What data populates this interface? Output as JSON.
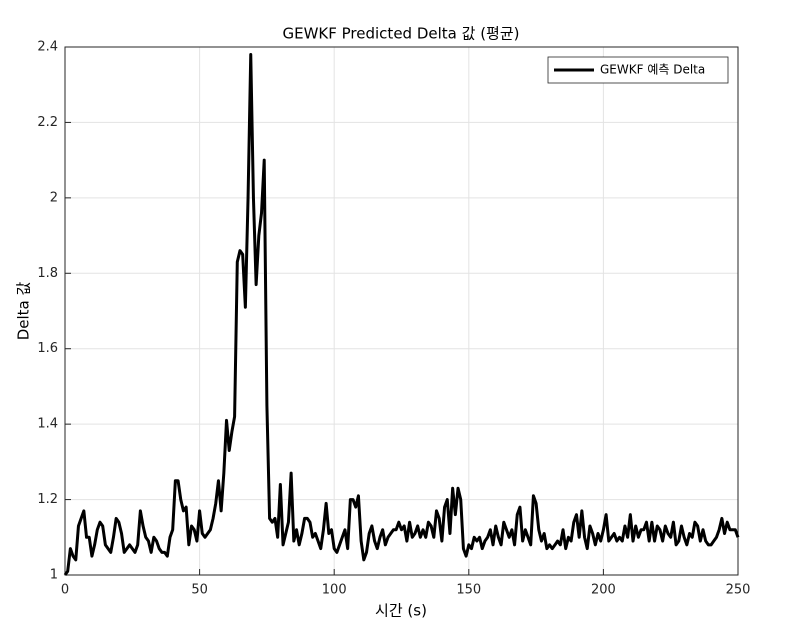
{
  "chart_data": {
    "type": "line",
    "title": "GEWKF Predicted Delta 값 (평균)",
    "x_label": "시간 (s)",
    "y_label": "Delta 값",
    "x": [
      0,
      1,
      2,
      3,
      4,
      5,
      6,
      7,
      8,
      9,
      10,
      11,
      12,
      13,
      14,
      15,
      16,
      17,
      18,
      19,
      20,
      21,
      22,
      23,
      24,
      25,
      26,
      27,
      28,
      29,
      30,
      31,
      32,
      33,
      34,
      35,
      36,
      37,
      38,
      39,
      40,
      41,
      42,
      43,
      44,
      45,
      46,
      47,
      48,
      49,
      50,
      51,
      52,
      53,
      54,
      55,
      56,
      57,
      58,
      59,
      60,
      61,
      62,
      63,
      64,
      65,
      66,
      67,
      68,
      69,
      70,
      71,
      72,
      73,
      74,
      75,
      76,
      77,
      78,
      79,
      80,
      81,
      82,
      83,
      84,
      85,
      86,
      87,
      88,
      89,
      90,
      91,
      92,
      93,
      94,
      95,
      96,
      97,
      98,
      99,
      100,
      101,
      102,
      103,
      104,
      105,
      106,
      107,
      108,
      109,
      110,
      111,
      112,
      113,
      114,
      115,
      116,
      117,
      118,
      119,
      120,
      121,
      122,
      123,
      124,
      125,
      126,
      127,
      128,
      129,
      130,
      131,
      132,
      133,
      134,
      135,
      136,
      137,
      138,
      139,
      140,
      141,
      142,
      143,
      144,
      145,
      146,
      147,
      148,
      149,
      150,
      151,
      152,
      153,
      154,
      155,
      156,
      157,
      158,
      159,
      160,
      161,
      162,
      163,
      164,
      165,
      166,
      167,
      168,
      169,
      170,
      171,
      172,
      173,
      174,
      175,
      176,
      177,
      178,
      179,
      180,
      181,
      182,
      183,
      184,
      185,
      186,
      187,
      188,
      189,
      190,
      191,
      192,
      193,
      194,
      195,
      196,
      197,
      198,
      199,
      200,
      201,
      202,
      203,
      204,
      205,
      206,
      207,
      208,
      209,
      210,
      211,
      212,
      213,
      214,
      215,
      216,
      217,
      218,
      219,
      220,
      221,
      222,
      223,
      224,
      225,
      226,
      227,
      228,
      229,
      230,
      231,
      232,
      233,
      234,
      235,
      236,
      237,
      238,
      239,
      240,
      241,
      242,
      243,
      244,
      245,
      246,
      247,
      248,
      249,
      250
    ],
    "series": [
      {
        "name": "GEWKF 예측 Delta",
        "color": "#000000",
        "values": [
          1.0,
          1.01,
          1.07,
          1.05,
          1.04,
          1.13,
          1.15,
          1.17,
          1.1,
          1.1,
          1.05,
          1.08,
          1.12,
          1.14,
          1.13,
          1.08,
          1.07,
          1.06,
          1.1,
          1.15,
          1.14,
          1.11,
          1.06,
          1.07,
          1.08,
          1.07,
          1.06,
          1.08,
          1.17,
          1.13,
          1.1,
          1.09,
          1.06,
          1.1,
          1.09,
          1.07,
          1.06,
          1.06,
          1.05,
          1.1,
          1.12,
          1.25,
          1.25,
          1.2,
          1.17,
          1.18,
          1.08,
          1.13,
          1.12,
          1.09,
          1.17,
          1.11,
          1.1,
          1.11,
          1.12,
          1.15,
          1.19,
          1.25,
          1.17,
          1.27,
          1.41,
          1.33,
          1.38,
          1.42,
          1.83,
          1.86,
          1.85,
          1.71,
          2.0,
          2.38,
          2.0,
          1.77,
          1.9,
          1.96,
          2.1,
          1.45,
          1.15,
          1.14,
          1.15,
          1.1,
          1.24,
          1.08,
          1.11,
          1.14,
          1.27,
          1.09,
          1.12,
          1.08,
          1.11,
          1.15,
          1.15,
          1.14,
          1.1,
          1.11,
          1.09,
          1.07,
          1.12,
          1.19,
          1.11,
          1.12,
          1.07,
          1.06,
          1.08,
          1.1,
          1.12,
          1.07,
          1.2,
          1.2,
          1.18,
          1.21,
          1.09,
          1.04,
          1.06,
          1.11,
          1.13,
          1.09,
          1.07,
          1.1,
          1.12,
          1.08,
          1.1,
          1.11,
          1.12,
          1.12,
          1.14,
          1.12,
          1.13,
          1.09,
          1.14,
          1.1,
          1.11,
          1.13,
          1.1,
          1.12,
          1.1,
          1.14,
          1.13,
          1.1,
          1.17,
          1.15,
          1.09,
          1.18,
          1.2,
          1.11,
          1.23,
          1.16,
          1.23,
          1.2,
          1.07,
          1.05,
          1.08,
          1.07,
          1.1,
          1.09,
          1.1,
          1.07,
          1.09,
          1.1,
          1.12,
          1.08,
          1.13,
          1.1,
          1.08,
          1.14,
          1.12,
          1.1,
          1.12,
          1.08,
          1.16,
          1.18,
          1.09,
          1.12,
          1.1,
          1.08,
          1.21,
          1.19,
          1.12,
          1.09,
          1.11,
          1.07,
          1.08,
          1.07,
          1.08,
          1.09,
          1.08,
          1.12,
          1.07,
          1.1,
          1.09,
          1.14,
          1.16,
          1.1,
          1.17,
          1.1,
          1.07,
          1.13,
          1.11,
          1.08,
          1.11,
          1.09,
          1.12,
          1.16,
          1.09,
          1.1,
          1.11,
          1.09,
          1.1,
          1.09,
          1.13,
          1.1,
          1.16,
          1.09,
          1.13,
          1.1,
          1.12,
          1.12,
          1.14,
          1.09,
          1.14,
          1.09,
          1.13,
          1.12,
          1.09,
          1.13,
          1.11,
          1.1,
          1.14,
          1.08,
          1.09,
          1.13,
          1.1,
          1.08,
          1.11,
          1.1,
          1.14,
          1.13,
          1.09,
          1.12,
          1.09,
          1.08,
          1.08,
          1.09,
          1.1,
          1.12,
          1.15,
          1.11,
          1.14,
          1.12,
          1.12,
          1.12,
          1.1
        ]
      }
    ],
    "xlim": [
      0,
      250
    ],
    "xticks": [
      0,
      50,
      100,
      150,
      200,
      250
    ],
    "ylim": [
      1,
      2.4
    ],
    "yticks": [
      1,
      1.2,
      1.4,
      1.6,
      1.8,
      2,
      2.2,
      2.4
    ],
    "grid": true,
    "legend_position": "northeast"
  }
}
